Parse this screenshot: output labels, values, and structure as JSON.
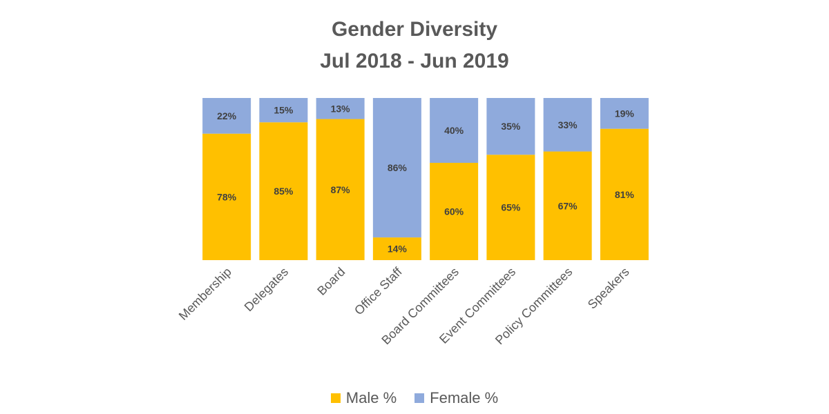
{
  "chart_data": {
    "type": "bar",
    "stacked": true,
    "title": "Gender Diversity",
    "subtitle": "Jul 2018 - Jun 2019",
    "categories": [
      "Membership",
      "Delegates",
      "Board",
      "Office Staff",
      "Board Committees",
      "Event Committees",
      "Policy Committees",
      "Speakers"
    ],
    "series": [
      {
        "name": "Male %",
        "values": [
          78,
          85,
          87,
          14,
          60,
          65,
          67,
          81
        ],
        "color": "#FFC000"
      },
      {
        "name": "Female %",
        "values": [
          22,
          15,
          13,
          86,
          40,
          35,
          33,
          19
        ],
        "color": "#8FAADC"
      }
    ],
    "ylim": [
      0,
      100
    ],
    "grid": false,
    "legend_position": "bottom",
    "value_label_suffix": "%"
  }
}
